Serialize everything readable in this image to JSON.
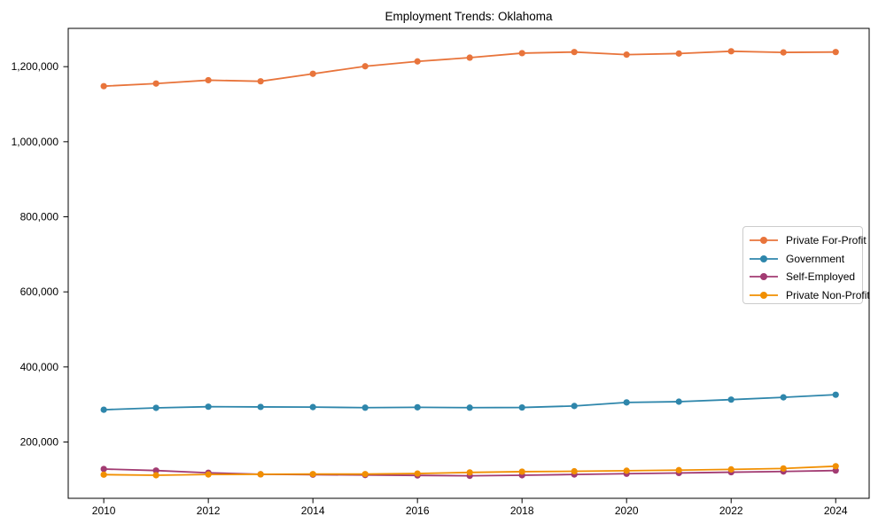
{
  "chart_data": {
    "type": "line",
    "title": "Employment Trends: Oklahoma",
    "x": [
      2010,
      2011,
      2012,
      2013,
      2014,
      2015,
      2016,
      2017,
      2018,
      2019,
      2020,
      2021,
      2022,
      2023,
      2024
    ],
    "x_tick_labels": [
      "2010",
      "2012",
      "2014",
      "2016",
      "2018",
      "2020",
      "2022",
      "2024"
    ],
    "x_ticks": [
      2010,
      2012,
      2014,
      2016,
      2018,
      2020,
      2022,
      2024
    ],
    "y_ticks": [
      200000,
      400000,
      600000,
      800000,
      1000000,
      1200000
    ],
    "y_tick_labels": [
      "200,000",
      "400,000",
      "600,000",
      "800,000",
      "1,000,000",
      "1,200,000"
    ],
    "xlim": [
      2009.32,
      2024.64
    ],
    "ylim": [
      50000,
      1302000
    ],
    "grid": false,
    "legend_position": "center-right",
    "series": [
      {
        "name": "Private For-Profit",
        "color": "#E8743B",
        "values": [
          1148000,
          1155000,
          1164000,
          1161000,
          1181000,
          1201000,
          1214000,
          1224000,
          1236000,
          1239000,
          1232000,
          1235000,
          1241000,
          1238000,
          1239000
        ]
      },
      {
        "name": "Government",
        "color": "#2E86AB",
        "values": [
          286000,
          291000,
          294000,
          293500,
          293000,
          291500,
          292500,
          291500,
          292000,
          296000,
          305500,
          307500,
          313000,
          319000,
          326000
        ]
      },
      {
        "name": "Self-Employed",
        "color": "#A23B72",
        "values": [
          128000,
          124000,
          118000,
          114000,
          113000,
          112000,
          111000,
          110000,
          111500,
          113500,
          115500,
          117500,
          119500,
          121500,
          124000
        ]
      },
      {
        "name": "Private Non-Profit",
        "color": "#F18F01",
        "values": [
          113000,
          111500,
          113500,
          114000,
          114500,
          114500,
          116000,
          119000,
          121000,
          122000,
          123500,
          125000,
          127000,
          129500,
          135500
        ]
      }
    ],
    "spine_color": "#000000",
    "text_color": "#000000",
    "legend_border_color": "#cccccc"
  }
}
